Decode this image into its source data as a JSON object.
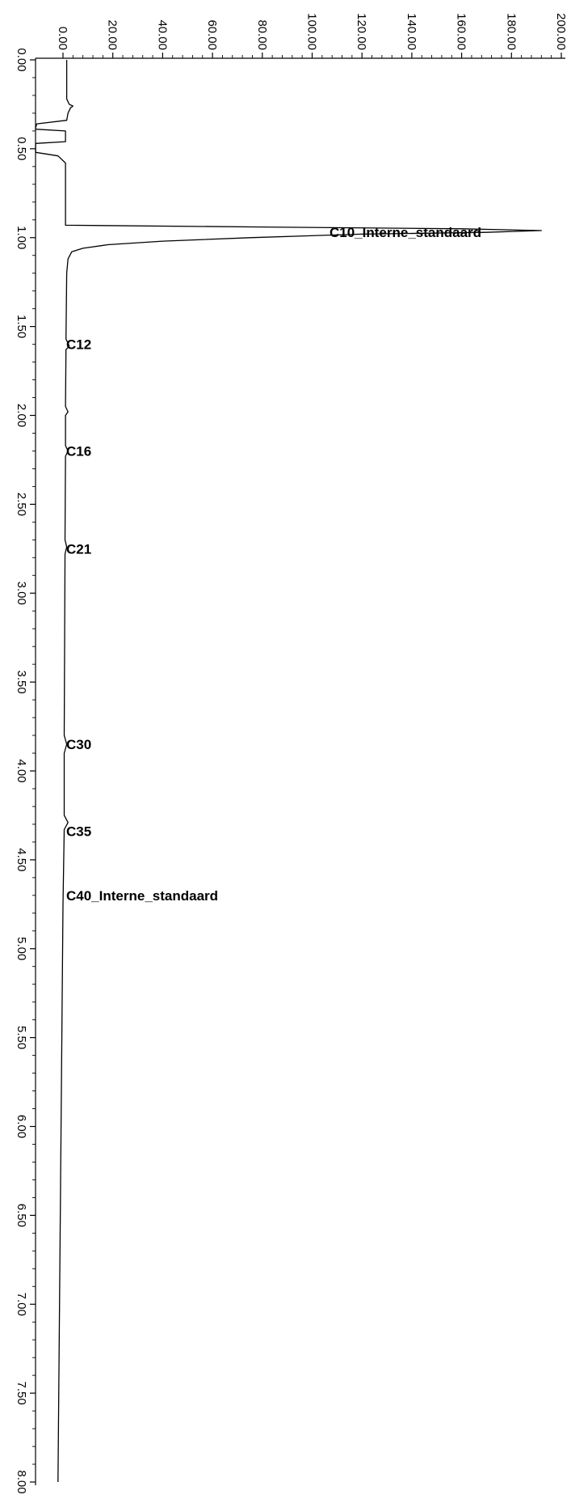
{
  "chart_data": {
    "type": "line",
    "orientation": "time axis vertical (top to bottom), signal axis horizontal",
    "title": "",
    "xlabel": "",
    "ylabel": "",
    "time_range": [
      0.0,
      8.0
    ],
    "signal_range": [
      0.0,
      200.0
    ],
    "time_ticks": [
      "0.00",
      "0.50",
      "1.00",
      "1.50",
      "2.00",
      "2.50",
      "3.00",
      "3.50",
      "4.00",
      "4.50",
      "5.00",
      "5.50",
      "6.00",
      "6.50",
      "7.00",
      "7.50",
      "8.00"
    ],
    "signal_ticks": [
      "0.00",
      "20.00",
      "40.00",
      "60.00",
      "80.00",
      "100.00",
      "120.00",
      "140.00",
      "160.00",
      "180.00",
      "200.00"
    ],
    "grid": false,
    "series": [
      {
        "points": [
          [
            0.0,
            1.5
          ],
          [
            0.22,
            1.5
          ],
          [
            0.25,
            2.5
          ],
          [
            0.26,
            4.0
          ],
          [
            0.27,
            3.0
          ],
          [
            0.3,
            2.0
          ],
          [
            0.34,
            1.5
          ],
          [
            0.36,
            -10.5
          ],
          [
            0.38,
            -11.0
          ],
          [
            0.39,
            -11.0
          ],
          [
            0.4,
            1.0
          ],
          [
            0.46,
            1.0
          ],
          [
            0.47,
            -11.0
          ],
          [
            0.52,
            -11.0
          ],
          [
            0.54,
            -2.0
          ],
          [
            0.58,
            1.0
          ],
          [
            0.93,
            1.0
          ],
          [
            0.94,
            80.0
          ],
          [
            0.95,
            160.0
          ],
          [
            0.96,
            192.0
          ],
          [
            0.97,
            170.0
          ],
          [
            0.98,
            120.0
          ],
          [
            1.0,
            75.0
          ],
          [
            1.02,
            40.0
          ],
          [
            1.04,
            18.0
          ],
          [
            1.06,
            8.0
          ],
          [
            1.08,
            3.5
          ],
          [
            1.12,
            2.0
          ],
          [
            1.2,
            1.5
          ],
          [
            1.57,
            1.2
          ],
          [
            1.61,
            2.5
          ],
          [
            1.63,
            1.2
          ],
          [
            1.95,
            1.0
          ],
          [
            1.98,
            2.0
          ],
          [
            2.0,
            1.0
          ],
          [
            2.17,
            1.0
          ],
          [
            2.2,
            2.0
          ],
          [
            2.23,
            1.0
          ],
          [
            2.7,
            0.8
          ],
          [
            2.74,
            1.5
          ],
          [
            2.78,
            0.8
          ],
          [
            3.8,
            0.5
          ],
          [
            3.85,
            1.5
          ],
          [
            3.9,
            0.5
          ],
          [
            4.25,
            0.5
          ],
          [
            4.29,
            2.0
          ],
          [
            4.33,
            0.5
          ],
          [
            4.75,
            0.0
          ],
          [
            8.0,
            -2.0
          ]
        ]
      }
    ],
    "annotations": [
      {
        "label": "C10_Interne_standaard",
        "time": 0.97
      },
      {
        "label": "C12",
        "time": 1.6
      },
      {
        "label": "C16",
        "time": 2.2
      },
      {
        "label": "C21",
        "time": 2.75
      },
      {
        "label": "C30",
        "time": 3.85
      },
      {
        "label": "C35",
        "time": 4.34
      },
      {
        "label": "C40_Interne_standaard",
        "time": 4.7
      }
    ]
  }
}
